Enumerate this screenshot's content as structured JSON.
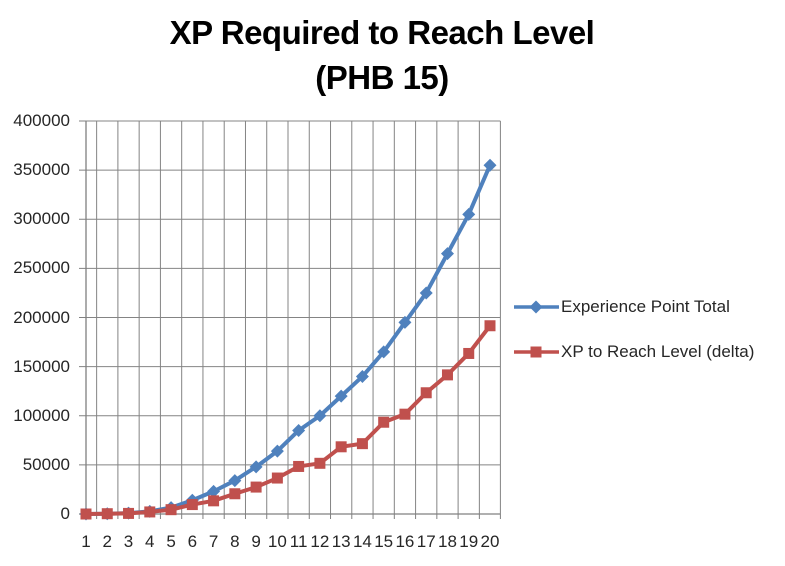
{
  "title": {
    "line1": "XP Required to Reach Level",
    "line2": "(PHB 15)"
  },
  "chart_data": {
    "type": "line",
    "x": [
      1,
      2,
      3,
      4,
      5,
      6,
      7,
      8,
      9,
      10,
      11,
      12,
      13,
      14,
      15,
      16,
      17,
      18,
      19,
      20
    ],
    "series": [
      {
        "name": "Experience Point Total",
        "marker": "diamond",
        "color": "#4F81BD",
        "values": [
          0,
          300,
          900,
          2700,
          6500,
          14000,
          23000,
          34000,
          48000,
          64000,
          85000,
          100000,
          120000,
          140000,
          165000,
          195000,
          225000,
          265000,
          305000,
          355000
        ]
      },
      {
        "name": "XP to Reach Level (delta)",
        "marker": "square",
        "color": "#C0504D",
        "values": [
          0,
          300,
          600,
          2100,
          4400,
          9600,
          13400,
          20600,
          27400,
          36600,
          48400,
          51600,
          68400,
          71600,
          93400,
          101600,
          123400,
          141600,
          163400,
          191600
        ]
      }
    ],
    "title": "XP Required to Reach Level (PHB 15)",
    "xlabel": "",
    "ylabel": "",
    "ylim": [
      0,
      400000
    ],
    "yticks": [
      0,
      50000,
      100000,
      150000,
      200000,
      250000,
      300000,
      350000,
      400000
    ],
    "grid": "both",
    "legend_position": "right",
    "gridline_color": "#848484",
    "axis_color": "#808080",
    "text_color": "#262626"
  }
}
